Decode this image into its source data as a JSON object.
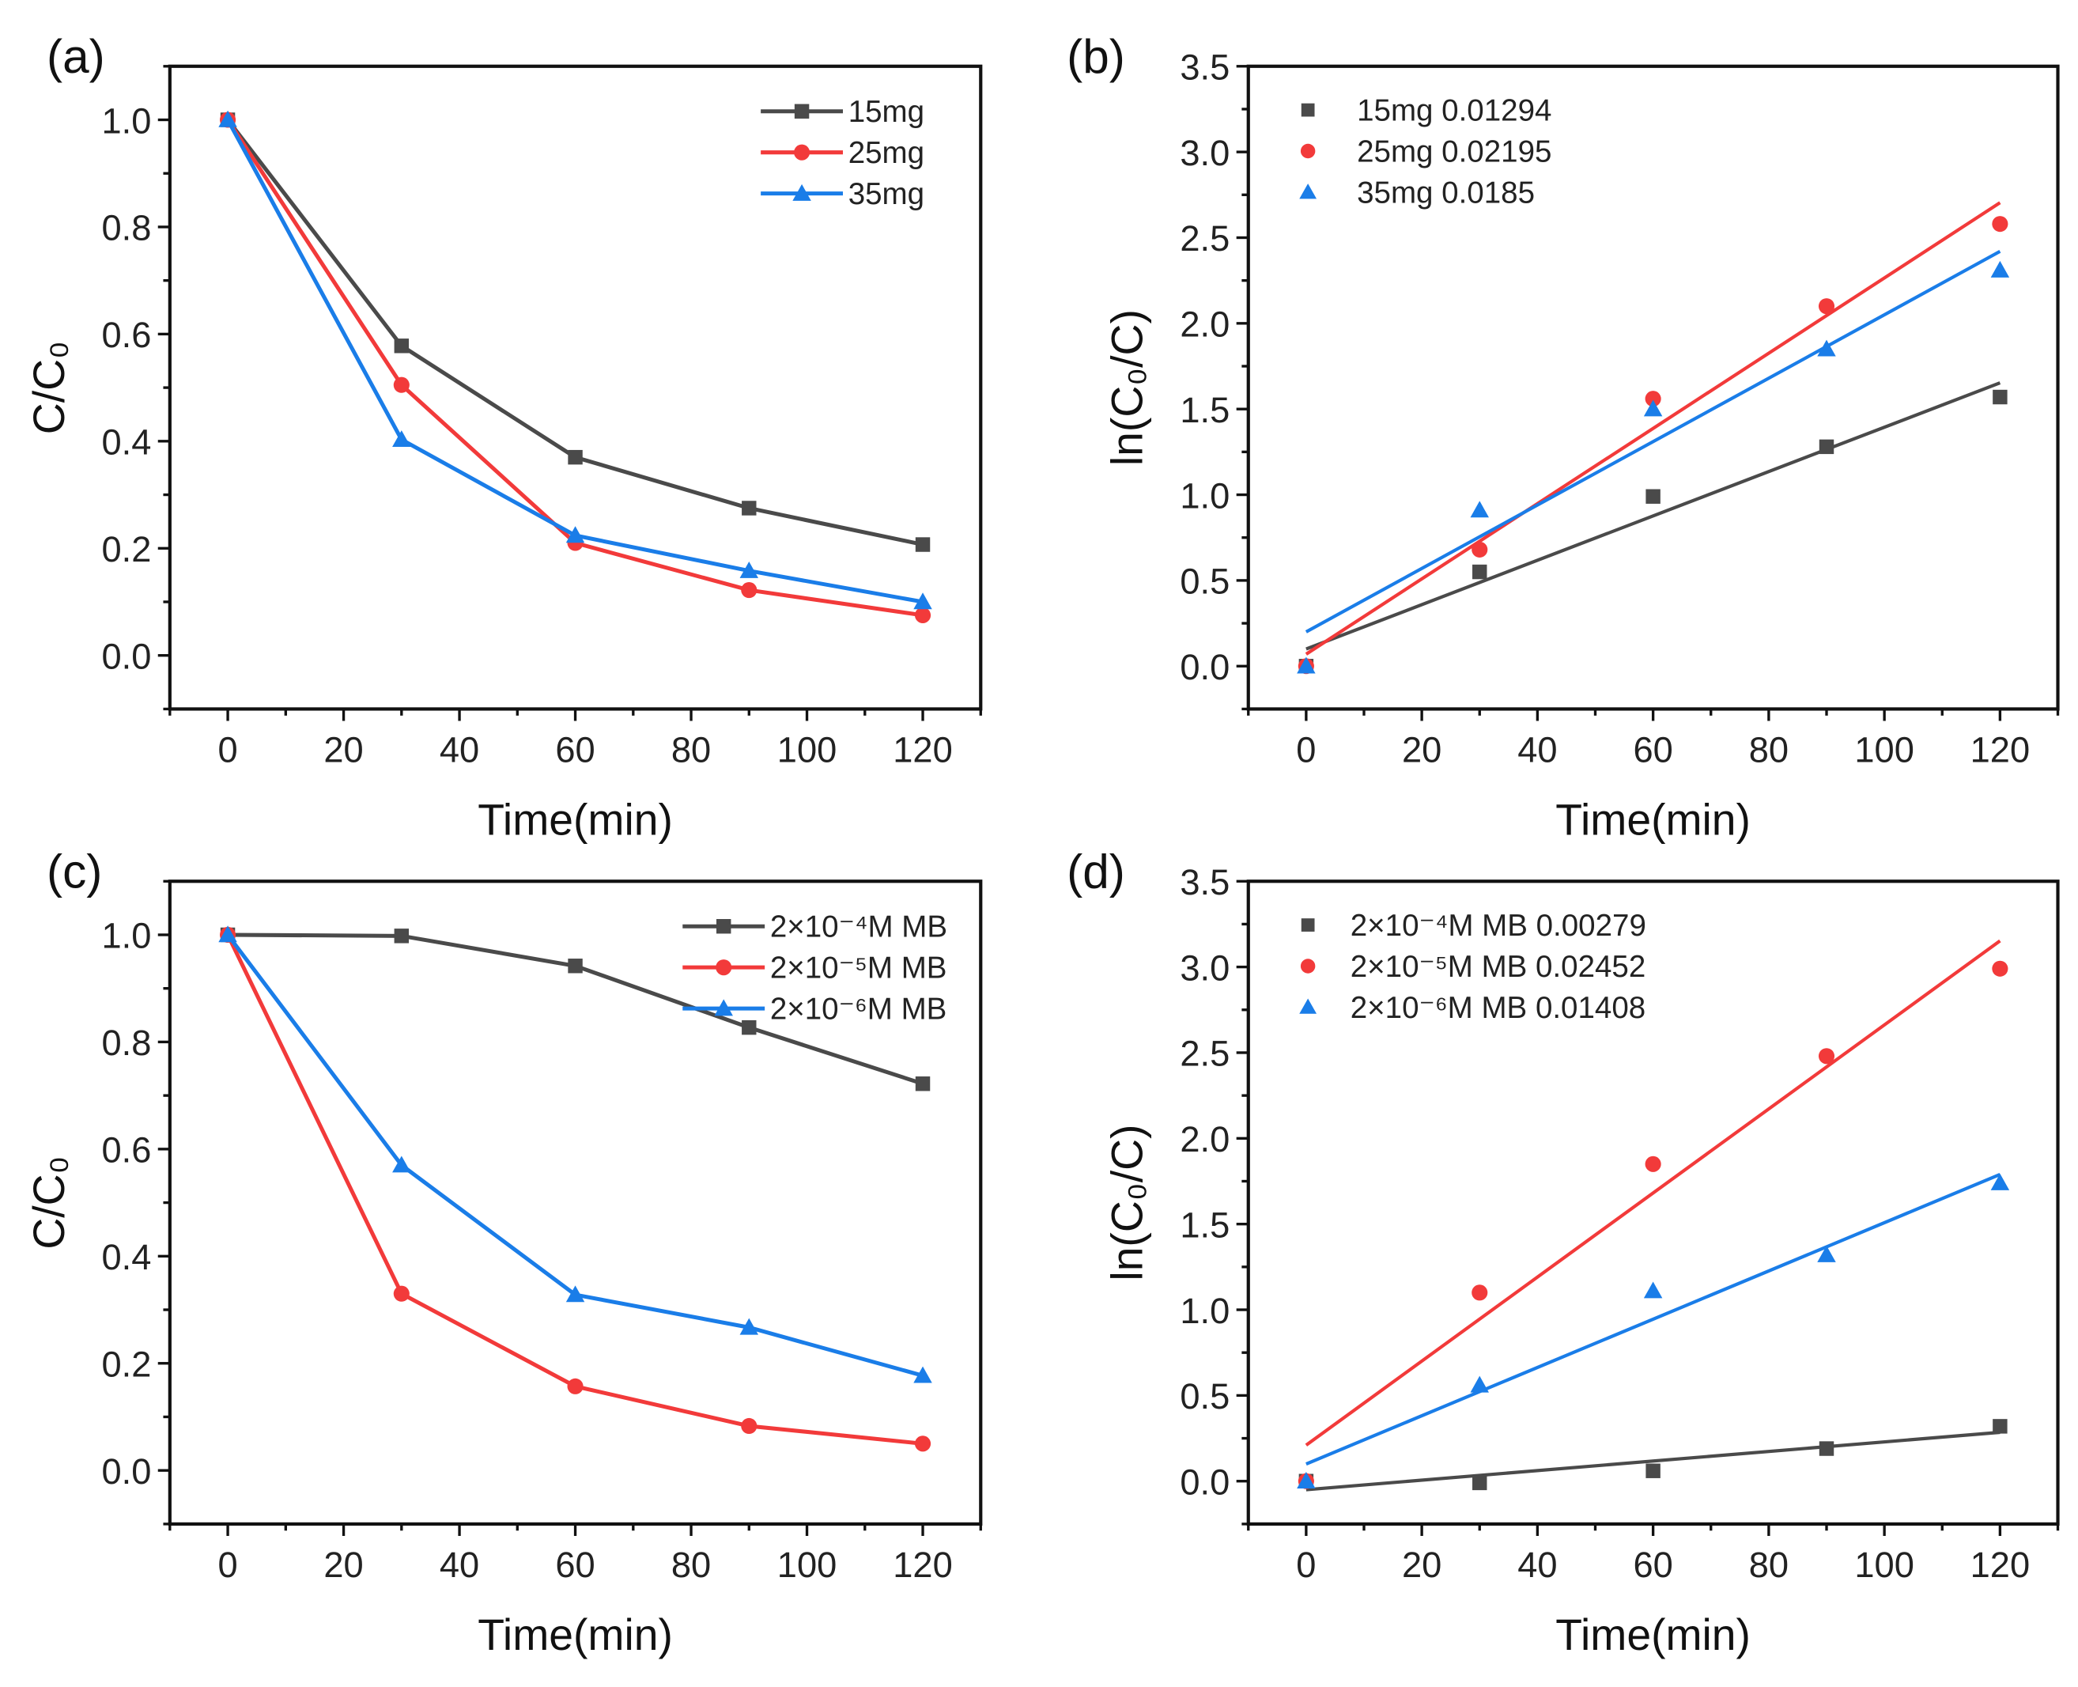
{
  "colors": {
    "s1": "#4a4a4a",
    "s2": "#f23a3a",
    "s3": "#1a7de8"
  },
  "chart_data": [
    {
      "panel": "(a)",
      "type": "line",
      "title": "",
      "xlabel": "Time(min)",
      "ylabel": "C/C₀",
      "xlim": [
        -10,
        130
      ],
      "ylim": [
        -0.1,
        1.1
      ],
      "xticks": [
        0,
        20,
        40,
        60,
        80,
        100,
        120
      ],
      "xtick_labels": [
        "0",
        "20",
        "40",
        "60",
        "80",
        "100",
        "120"
      ],
      "yticks": [
        0,
        0.2,
        0.4,
        0.6,
        0.8,
        1.0
      ],
      "ytick_labels": [
        "0.0",
        "0.2",
        "0.4",
        "0.6",
        "0.8",
        "1.0"
      ],
      "legend": "top-right",
      "legend_style": "line",
      "x": [
        0,
        30,
        60,
        90,
        120
      ],
      "series": [
        {
          "name": "15mg",
          "marker": "square",
          "values": [
            1.0,
            0.578,
            0.37,
            0.275,
            0.207
          ]
        },
        {
          "name": "25mg",
          "marker": "circle",
          "values": [
            1.0,
            0.505,
            0.21,
            0.122,
            0.075
          ]
        },
        {
          "name": "35mg",
          "marker": "triangle",
          "values": [
            1.0,
            0.403,
            0.224,
            0.158,
            0.1
          ]
        }
      ]
    },
    {
      "panel": "(b)",
      "type": "scatter",
      "title": "",
      "xlabel": "Time(min)",
      "ylabel": "ln(C₀/C)",
      "xlim": [
        -10,
        130
      ],
      "ylim": [
        -0.25,
        3.5
      ],
      "xticks": [
        0,
        20,
        40,
        60,
        80,
        100,
        120
      ],
      "xtick_labels": [
        "0",
        "20",
        "40",
        "60",
        "80",
        "100",
        "120"
      ],
      "yticks": [
        0,
        0.5,
        1.0,
        1.5,
        2.0,
        2.5,
        3.0,
        3.5
      ],
      "ytick_labels": [
        "0.0",
        "0.5",
        "1.0",
        "1.5",
        "2.0",
        "2.5",
        "3.0",
        "3.5"
      ],
      "legend": "top-left",
      "legend_style": "marker",
      "x": [
        0,
        30,
        60,
        90,
        120
      ],
      "series": [
        {
          "name": "15mg 0.01294",
          "marker": "square",
          "values": [
            0,
            0.55,
            0.99,
            1.28,
            1.57
          ],
          "fit": {
            "slope": 0.01294,
            "intercept": 0.1
          }
        },
        {
          "name": "25mg 0.02195",
          "marker": "circle",
          "values": [
            0,
            0.68,
            1.56,
            2.1,
            2.58
          ],
          "fit": {
            "slope": 0.02195,
            "intercept": 0.07
          }
        },
        {
          "name": "35mg 0.0185",
          "marker": "triangle",
          "values": [
            0,
            0.91,
            1.5,
            1.85,
            2.31
          ],
          "fit": {
            "slope": 0.0185,
            "intercept": 0.2
          }
        }
      ]
    },
    {
      "panel": "(c)",
      "type": "line",
      "title": "",
      "xlabel": "Time(min)",
      "ylabel": "C/C₀",
      "xlim": [
        -10,
        130
      ],
      "ylim": [
        -0.1,
        1.1
      ],
      "xticks": [
        0,
        20,
        40,
        60,
        80,
        100,
        120
      ],
      "xtick_labels": [
        "0",
        "20",
        "40",
        "60",
        "80",
        "100",
        "120"
      ],
      "yticks": [
        0,
        0.2,
        0.4,
        0.6,
        0.8,
        1.0
      ],
      "ytick_labels": [
        "0.0",
        "0.2",
        "0.4",
        "0.6",
        "0.8",
        "1.0"
      ],
      "legend": "top-right",
      "legend_style": "line",
      "x": [
        0,
        30,
        60,
        90,
        120
      ],
      "series": [
        {
          "name": "2×10⁻⁴M MB",
          "marker": "square",
          "values": [
            1.0,
            0.998,
            0.942,
            0.827,
            0.722
          ]
        },
        {
          "name": "2×10⁻⁵M MB",
          "marker": "circle",
          "values": [
            1.0,
            0.33,
            0.157,
            0.083,
            0.05
          ]
        },
        {
          "name": "2×10⁻⁶M MB",
          "marker": "triangle",
          "values": [
            1.0,
            0.57,
            0.328,
            0.267,
            0.177
          ]
        }
      ]
    },
    {
      "panel": "(d)",
      "type": "scatter",
      "title": "",
      "xlabel": "Time(min)",
      "ylabel": "ln(C₀/C)",
      "xlim": [
        -10,
        130
      ],
      "ylim": [
        -0.25,
        3.5
      ],
      "xticks": [
        0,
        20,
        40,
        60,
        80,
        100,
        120
      ],
      "xtick_labels": [
        "0",
        "20",
        "40",
        "60",
        "80",
        "100",
        "120"
      ],
      "yticks": [
        0,
        0.5,
        1.0,
        1.5,
        2.0,
        2.5,
        3.0,
        3.5
      ],
      "ytick_labels": [
        "0.0",
        "0.5",
        "1.0",
        "1.5",
        "2.0",
        "2.5",
        "3.0",
        "3.5"
      ],
      "legend": "top-left",
      "legend_style": "marker",
      "x": [
        0,
        30,
        60,
        90,
        120
      ],
      "series": [
        {
          "name": "2×10⁻⁴M MB 0.00279",
          "marker": "square",
          "values": [
            0,
            -0.01,
            0.06,
            0.19,
            0.32
          ],
          "fit": {
            "slope": 0.00279,
            "intercept": -0.05
          }
        },
        {
          "name": "2×10⁻⁵M MB 0.02452",
          "marker": "circle",
          "values": [
            0,
            1.1,
            1.85,
            2.48,
            2.99
          ],
          "fit": {
            "slope": 0.02452,
            "intercept": 0.21
          }
        },
        {
          "name": "2×10⁻⁶M MB 0.01408",
          "marker": "triangle",
          "values": [
            0,
            0.56,
            1.11,
            1.32,
            1.74
          ],
          "fit": {
            "slope": 0.01408,
            "intercept": 0.1
          }
        }
      ]
    }
  ]
}
